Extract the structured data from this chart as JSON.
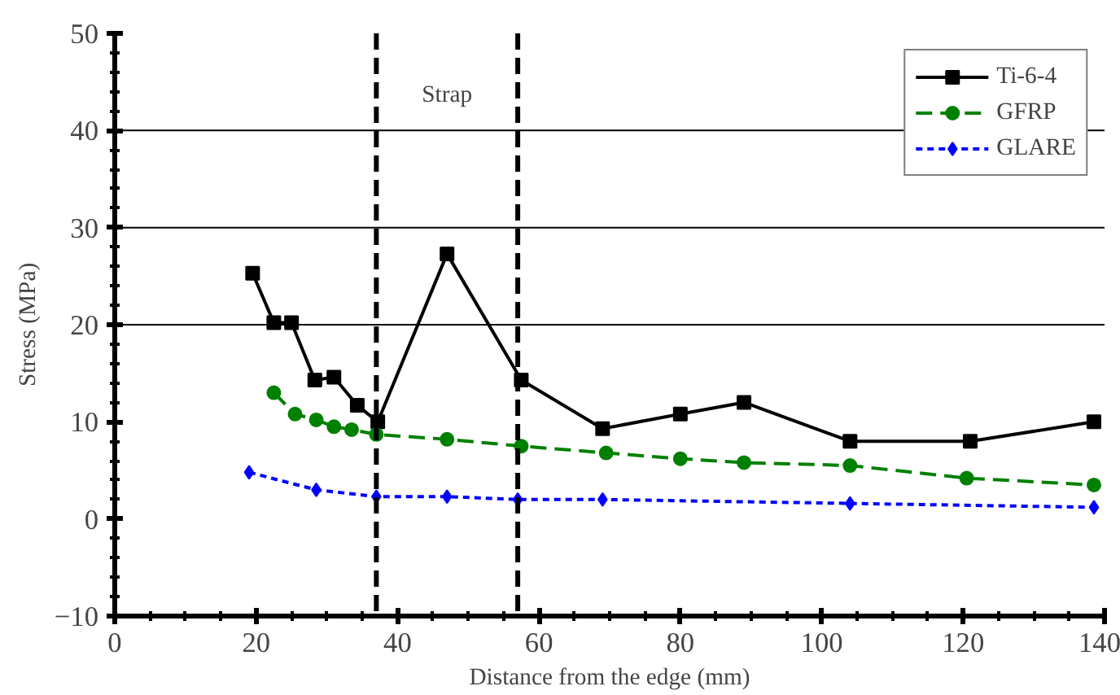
{
  "chart_data": {
    "type": "line",
    "xlabel": "Distance from the edge (mm)",
    "ylabel": "Stress (MPa)",
    "xlim": [
      0,
      140
    ],
    "xticks": [
      0,
      20,
      40,
      60,
      80,
      100,
      120,
      140
    ],
    "ylim": [
      -10,
      50
    ],
    "yticks": [
      -10,
      0,
      10,
      20,
      30,
      40,
      50
    ],
    "grid": false,
    "legend": "top right",
    "series": [
      {
        "name": "Ti-6-4",
        "color": "#000000",
        "marker": "square",
        "line_style": "solid",
        "x": [
          19.5,
          22.5,
          25,
          28.3,
          31,
          34.3,
          37.2,
          47,
          57.5,
          69,
          80,
          89,
          104,
          121,
          138.5
        ],
        "values": [
          25.3,
          20.2,
          20.2,
          14.3,
          14.6,
          11.7,
          10,
          27.3,
          14.3,
          9.3,
          10.8,
          12,
          8,
          8,
          10
        ]
      },
      {
        "name": "GFRP",
        "color": "#008000",
        "marker": "circle",
        "line_style": "dashed",
        "x": [
          22.5,
          25.5,
          28.5,
          31,
          33.5,
          37,
          47,
          57.5,
          69.5,
          80,
          89,
          104,
          120.5,
          138.5
        ],
        "values": [
          13,
          10.8,
          10.2,
          9.5,
          9.2,
          8.7,
          8.2,
          7.5,
          6.8,
          6.2,
          5.8,
          5.5,
          4.2,
          3.5
        ]
      },
      {
        "name": "GLARE",
        "color": "#0000ff",
        "marker": "diamond",
        "line_style": "dotted",
        "x": [
          19,
          28.5,
          37,
          47,
          57,
          69,
          104,
          138.5
        ],
        "values": [
          4.8,
          3,
          2.3,
          2.3,
          2,
          2,
          1.6,
          1.2
        ]
      }
    ],
    "ref_lines": [
      {
        "axis": "x",
        "value": 37,
        "label": null,
        "color": "#000000",
        "line_style": "dashed"
      },
      {
        "axis": "x",
        "value": 57,
        "label": null,
        "color": "#000000",
        "line_style": "dashed"
      },
      {
        "axis": "y",
        "value": 20,
        "label": null,
        "color": "#000000",
        "line_style": "solid"
      },
      {
        "axis": "y",
        "value": 30,
        "label": null,
        "color": "#000000",
        "line_style": "solid"
      },
      {
        "axis": "y",
        "value": 40,
        "label": null,
        "color": "#000000",
        "line_style": "solid"
      }
    ],
    "annotations": [
      "Strap"
    ]
  }
}
